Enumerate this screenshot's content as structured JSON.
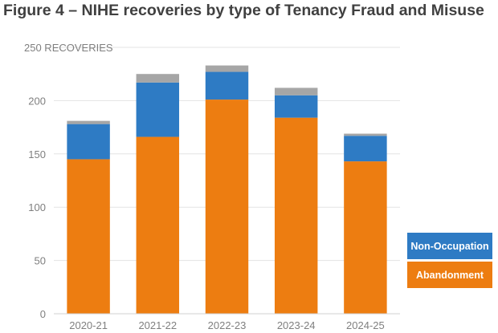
{
  "title": "Figure 4 – NIHE recoveries by type of Tenancy Fraud and Misuse",
  "chart_data": {
    "type": "bar",
    "stacked": true,
    "title": "Figure 4 – NIHE recoveries by type of Tenancy Fraud and Misuse",
    "ylabel": "RECOVERIES",
    "categories": [
      "2020-21",
      "2021-22",
      "2022-23",
      "2023-24",
      "2024-25"
    ],
    "ylim": [
      0,
      250
    ],
    "yticks": [
      {
        "value": 0,
        "label": "0"
      },
      {
        "value": 50,
        "label": "50"
      },
      {
        "value": 100,
        "label": "100"
      },
      {
        "value": 150,
        "label": "150"
      },
      {
        "value": 200,
        "label": "200"
      },
      {
        "value": 250,
        "label": "250 RECOVERIES"
      }
    ],
    "grid": true,
    "legend_position": "bottom-right",
    "series": [
      {
        "name": "Abandonment",
        "color": "#ed7d11",
        "values": [
          145,
          166,
          201,
          184,
          143
        ]
      },
      {
        "name": "Non-Occupation",
        "color": "#2e7bc4",
        "values": [
          33,
          51,
          26,
          21,
          24
        ]
      },
      {
        "color": "#a6a6a6",
        "values": [
          3,
          8,
          6,
          7,
          2
        ]
      }
    ]
  }
}
